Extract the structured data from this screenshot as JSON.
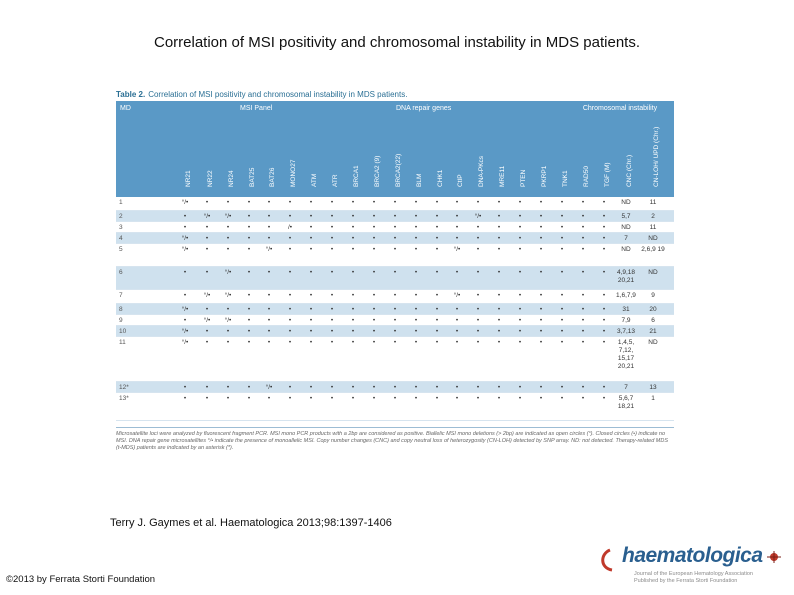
{
  "title": "Correlation of MSI positivity and chromosomal instability in MDS patients.",
  "table": {
    "caption_label": "Table 2.",
    "caption_text": "Correlation of MSI positivity and chromosomal instability in MDS patients.",
    "group_md": "MD",
    "group_msi": "MSI Panel",
    "group_dna": "DNA repair genes",
    "group_chrom": "Chromosomal instability",
    "columns": [
      "NR21",
      "NR22",
      "NR24",
      "BAT25",
      "BAT26",
      "MONO27",
      "ATM",
      "ATR",
      "BRCA1",
      "BRCA2 (9)",
      "BRCA2(22)",
      "BLM",
      "CHK1",
      "CtIP",
      "DNA-PKcs",
      "MRE11",
      "PTEN",
      "PKRP1",
      "TNK1",
      "RAD50",
      "TGF (M)",
      "CNC (Chr.)",
      "CN-LOH/ UPD (Chr.)"
    ],
    "rows": [
      {
        "id": "1",
        "cells": [
          "°/•",
          "•",
          "•",
          "•",
          "•",
          "•",
          "•",
          "•",
          "•",
          "•",
          "•",
          "•",
          "•",
          "•",
          "•",
          "•",
          "•",
          "•",
          "•",
          "•",
          "•",
          "ND",
          "11"
        ]
      },
      {
        "id": "2",
        "cells": [
          "•",
          "°/•",
          "°/•",
          "•",
          "•",
          "•",
          "•",
          "•",
          "•",
          "•",
          "•",
          "•",
          "•",
          "•",
          "°/•",
          "•",
          "•",
          "•",
          "•",
          "•",
          "•",
          "5,7",
          "2"
        ]
      },
      {
        "id": "3",
        "cells": [
          "•",
          "•",
          "•",
          "•",
          "•",
          "/•",
          "•",
          "•",
          "•",
          "•",
          "•",
          "•",
          "•",
          "•",
          "•",
          "•",
          "•",
          "•",
          "•",
          "•",
          "•",
          "ND",
          "11"
        ]
      },
      {
        "id": "4",
        "cells": [
          "°/•",
          "•",
          "•",
          "•",
          "•",
          "•",
          "•",
          "•",
          "•",
          "•",
          "•",
          "•",
          "•",
          "•",
          "•",
          "•",
          "•",
          "•",
          "•",
          "•",
          "•",
          "7",
          "ND"
        ]
      },
      {
        "id": "5",
        "cells": [
          "°/•",
          "•",
          "•",
          "•",
          "°/•",
          "•",
          "•",
          "•",
          "•",
          "•",
          "•",
          "•",
          "•",
          "°/•",
          "•",
          "•",
          "•",
          "•",
          "•",
          "•",
          "•",
          "ND",
          "2,6,9 19"
        ]
      },
      {
        "id": "6",
        "cells": [
          "•",
          "•",
          "°/•",
          "•",
          "•",
          "•",
          "•",
          "•",
          "•",
          "•",
          "•",
          "•",
          "•",
          "•",
          "•",
          "•",
          "•",
          "•",
          "•",
          "•",
          "•",
          "4,9,18 20,21",
          "ND"
        ]
      },
      {
        "id": "7",
        "cells": [
          "•",
          "°/•",
          "°/•",
          "•",
          "•",
          "•",
          "•",
          "•",
          "•",
          "•",
          "•",
          "•",
          "•",
          "°/•",
          "•",
          "•",
          "•",
          "•",
          "•",
          "•",
          "•",
          "1,6,7,9",
          "9"
        ]
      },
      {
        "id": "8",
        "cells": [
          "°/•",
          "•",
          "•",
          "•",
          "•",
          "•",
          "•",
          "•",
          "•",
          "•",
          "•",
          "•",
          "•",
          "•",
          "•",
          "•",
          "•",
          "•",
          "•",
          "•",
          "•",
          "31",
          "20"
        ]
      },
      {
        "id": "9",
        "cells": [
          "•",
          "°/•",
          "°/•",
          "•",
          "•",
          "•",
          "•",
          "•",
          "•",
          "•",
          "•",
          "•",
          "•",
          "•",
          "•",
          "•",
          "•",
          "•",
          "•",
          "•",
          "•",
          "7,9",
          "6"
        ]
      },
      {
        "id": "10",
        "cells": [
          "°/•",
          "•",
          "•",
          "•",
          "•",
          "•",
          "•",
          "•",
          "•",
          "•",
          "•",
          "•",
          "•",
          "•",
          "•",
          "•",
          "•",
          "•",
          "•",
          "•",
          "•",
          "3,7,13",
          "21"
        ]
      },
      {
        "id": "11",
        "cells": [
          "°/•",
          "•",
          "•",
          "•",
          "•",
          "•",
          "•",
          "•",
          "•",
          "•",
          "•",
          "•",
          "•",
          "•",
          "•",
          "•",
          "•",
          "•",
          "•",
          "•",
          "•",
          "1,4,5, 7,12, 15,17 20,21",
          "ND"
        ]
      },
      {
        "id": "12*",
        "cells": [
          "•",
          "•",
          "•",
          "•",
          "°/•",
          "•",
          "•",
          "•",
          "•",
          "•",
          "•",
          "•",
          "•",
          "•",
          "•",
          "•",
          "•",
          "•",
          "•",
          "•",
          "•",
          "7",
          "13"
        ]
      },
      {
        "id": "13*",
        "cells": [
          "•",
          "•",
          "•",
          "•",
          "•",
          "•",
          "•",
          "•",
          "•",
          "•",
          "•",
          "•",
          "•",
          "•",
          "•",
          "•",
          "•",
          "•",
          "•",
          "•",
          "•",
          "5,6,7 18,21",
          "1"
        ]
      }
    ],
    "footnote": "Microsatellite loci were analyzed by fluorescent fragment PCR. MSI mono PCR products with a 2bp are considered as positive. Biallelic MSI mono deletions (> 2bp) are indicated as open circles (°). Closed circles (•) indicate no MSI. DNA repair gene microsatellites °/• indicate the presence of monoallelic MSI. Copy number changes (CNC) and copy neutral loss of heterozygosity (CN-LOH) detected by SNP array. ND: not detected. Therapy-related MDS (t-MDS) patients are indicated by an asterisk (*)."
  },
  "citation": "Terry J. Gaymes et al. Haematologica 2013;98:1397-1406",
  "copyright": "©2013 by Ferrata Storti Foundation",
  "logo": {
    "word": "haematologica",
    "sub1": "Journal of the European Hematology Association",
    "sub2": "Published by the Ferrata Storti Foundation"
  }
}
